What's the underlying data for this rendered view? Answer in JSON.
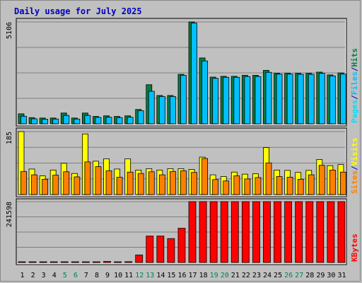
{
  "chart_data": [
    {
      "type": "bar",
      "title": "Daily usage for July 2025",
      "panel": "top",
      "ymax_label": "5106",
      "ymax": 5106,
      "right_label": {
        "parts": [
          "Pages",
          "/",
          "Files",
          "/",
          "Hits"
        ]
      },
      "categories": [
        "1",
        "2",
        "3",
        "4",
        "5",
        "6",
        "7",
        "8",
        "9",
        "10",
        "11",
        "12",
        "13",
        "14",
        "15",
        "16",
        "17",
        "18",
        "19",
        "20",
        "21",
        "22",
        "23",
        "24",
        "25",
        "26",
        "27",
        "28",
        "29",
        "30",
        "31"
      ],
      "series": [
        {
          "name": "Hits",
          "color": "#008040",
          "values": [
            500,
            310,
            290,
            290,
            540,
            290,
            540,
            370,
            400,
            370,
            400,
            720,
            1960,
            1420,
            1420,
            2480,
            5106,
            3300,
            2340,
            2380,
            2380,
            2430,
            2430,
            2680,
            2530,
            2530,
            2530,
            2530,
            2590,
            2450,
            2550
          ]
        },
        {
          "name": "Files",
          "color": "#00c0ff",
          "values": [
            380,
            250,
            230,
            240,
            420,
            240,
            420,
            320,
            330,
            310,
            330,
            660,
            1630,
            1370,
            1370,
            2430,
            5050,
            3150,
            2280,
            2330,
            2330,
            2370,
            2370,
            2580,
            2490,
            2490,
            2480,
            2480,
            2530,
            2400,
            2490
          ]
        }
      ]
    },
    {
      "type": "bar",
      "panel": "middle",
      "ymax_label": "185",
      "ymax": 185,
      "right_label": {
        "parts": [
          "Sites",
          "/",
          "Visits"
        ]
      },
      "categories": [
        "1",
        "2",
        "3",
        "4",
        "5",
        "6",
        "7",
        "8",
        "9",
        "10",
        "11",
        "12",
        "13",
        "14",
        "15",
        "16",
        "17",
        "18",
        "19",
        "20",
        "21",
        "22",
        "23",
        "24",
        "25",
        "26",
        "27",
        "28",
        "29",
        "30",
        "31"
      ],
      "series": [
        {
          "name": "Visits",
          "color": "#ffff00",
          "values": [
            185,
            75,
            55,
            72,
            92,
            62,
            178,
            98,
            105,
            75,
            105,
            72,
            76,
            72,
            76,
            76,
            74,
            110,
            58,
            53,
            66,
            60,
            61,
            138,
            72,
            71,
            65,
            71,
            103,
            85,
            88
          ]
        },
        {
          "name": "Sites",
          "color": "#ff8000",
          "values": [
            68,
            58,
            45,
            57,
            67,
            52,
            96,
            82,
            70,
            51,
            66,
            62,
            67,
            58,
            68,
            70,
            65,
            106,
            44,
            40,
            55,
            46,
            50,
            93,
            53,
            51,
            45,
            58,
            86,
            72,
            66
          ]
        }
      ]
    },
    {
      "type": "bar",
      "panel": "bottom",
      "ymax_label": "241598",
      "ymax": 241598,
      "right_label": {
        "parts": [
          "KBytes"
        ]
      },
      "categories": [
        "1",
        "2",
        "3",
        "4",
        "5",
        "6",
        "7",
        "8",
        "9",
        "10",
        "11",
        "12",
        "13",
        "14",
        "15",
        "16",
        "17",
        "18",
        "19",
        "20",
        "21",
        "22",
        "23",
        "24",
        "25",
        "26",
        "27",
        "28",
        "29",
        "30",
        "31"
      ],
      "series": [
        {
          "name": "KBytes",
          "color": "#ff0000",
          "values": [
            1200,
            1100,
            1100,
            1100,
            1200,
            1100,
            1300,
            1500,
            4200,
            1500,
            3300,
            30000,
            105000,
            105000,
            95000,
            136000,
            241598,
            241598,
            241598,
            241598,
            241598,
            241598,
            241598,
            241598,
            241598,
            241598,
            241598,
            241598,
            241598,
            241598,
            241598
          ]
        }
      ]
    }
  ],
  "x_axis": {
    "labels": [
      "1",
      "2",
      "3",
      "4",
      "5",
      "6",
      "7",
      "8",
      "9",
      "10",
      "11",
      "12",
      "13",
      "14",
      "15",
      "16",
      "17",
      "18",
      "19",
      "20",
      "21",
      "22",
      "23",
      "24",
      "25",
      "26",
      "27",
      "28",
      "29",
      "30",
      "31"
    ],
    "weekend_days": [
      "5",
      "6",
      "12",
      "13",
      "19",
      "20",
      "26",
      "27"
    ],
    "weekday_color": "#000000",
    "weekend_color": "#00805c"
  },
  "colors": {
    "background": "#c0c0c0",
    "plot_background": "#c0c0c0",
    "title": "#0000c0",
    "gridline": "#808080",
    "hits": "#008040",
    "files": "#00c0ff",
    "pages": "#00e0ff",
    "visits": "#ffff00",
    "sites": "#ff8000",
    "kbytes": "#ff0000",
    "label_slash": "#0000c0"
  }
}
